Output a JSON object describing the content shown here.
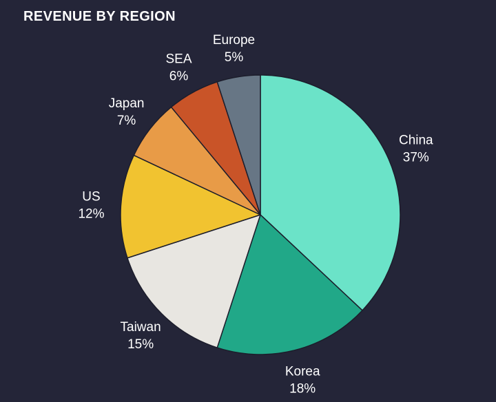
{
  "chart_data": {
    "type": "pie",
    "title": "REVENUE BY REGION",
    "slices": [
      {
        "label": "China",
        "value": 37,
        "value_label": "37%",
        "color": "#6be3c8"
      },
      {
        "label": "Korea",
        "value": 18,
        "value_label": "18%",
        "color": "#21a888"
      },
      {
        "label": "Taiwan",
        "value": 15,
        "value_label": "15%",
        "color": "#e8e6e1"
      },
      {
        "label": "US",
        "value": 12,
        "value_label": "12%",
        "color": "#f1c330"
      },
      {
        "label": "Japan",
        "value": 7,
        "value_label": "7%",
        "color": "#e89b47"
      },
      {
        "label": "SEA",
        "value": 6,
        "value_label": "6%",
        "color": "#c95428"
      },
      {
        "label": "Europe",
        "value": 5,
        "value_label": "5%",
        "color": "#677685"
      }
    ],
    "start": "top",
    "direction": "clockwise",
    "legend": "none"
  }
}
